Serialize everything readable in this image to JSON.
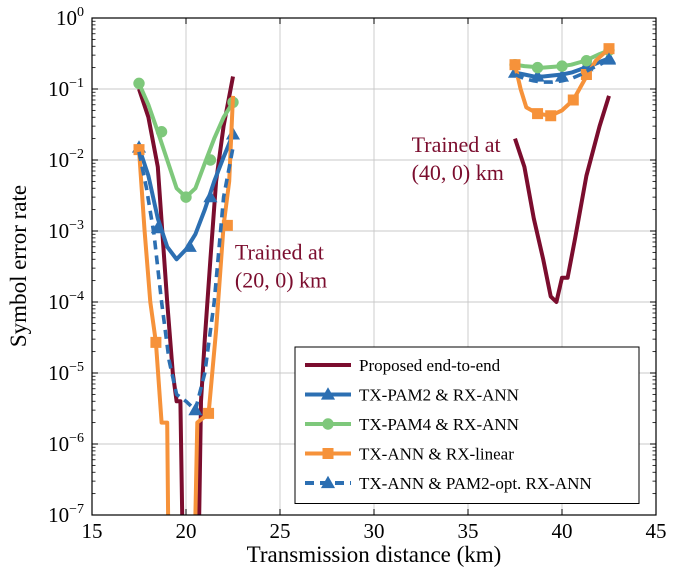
{
  "chart_data": {
    "type": "line",
    "xlabel": "Transmission distance (km)",
    "ylabel": "Symbol error rate",
    "xlim": [
      15,
      45
    ],
    "ylim": [
      1e-07,
      1
    ],
    "yscale": "log",
    "grid": true,
    "legend_position": "bottom-right",
    "x_ticks": [
      15,
      20,
      25,
      30,
      35,
      40,
      45
    ],
    "x_tick_labels": [
      "15",
      "20",
      "25",
      "30",
      "35",
      "40",
      "45"
    ],
    "y_ticks": [
      1e-07,
      1e-06,
      1e-05,
      0.0001,
      0.001,
      0.01,
      0.1,
      1
    ],
    "y_tick_labels": [
      {
        "base": "10",
        "exp": "−7"
      },
      {
        "base": "10",
        "exp": "−6"
      },
      {
        "base": "10",
        "exp": "−5"
      },
      {
        "base": "10",
        "exp": "−4"
      },
      {
        "base": "10",
        "exp": "−3"
      },
      {
        "base": "10",
        "exp": "−2"
      },
      {
        "base": "10",
        "exp": "−1"
      },
      {
        "base": "10",
        "exp": "0"
      }
    ],
    "annotations": [
      {
        "lines": [
          "Trained at",
          "(20, 0) km"
        ],
        "x": 22.6,
        "y": 0.0004,
        "color": "#7b0d2e"
      },
      {
        "lines": [
          "Trained at",
          "(40, 0) km"
        ],
        "x": 32.0,
        "y": 0.013,
        "color": "#7b0d2e"
      }
    ],
    "series": [
      {
        "name": "Proposed end-to-end",
        "color": "#7b0d2e",
        "dashed": false,
        "marker": "none",
        "segments": [
          [
            [
              17.5,
              0.1
            ],
            [
              18.0,
              0.04
            ],
            [
              18.5,
              0.008
            ],
            [
              19.0,
              0.0001
            ],
            [
              19.3,
              1e-05
            ],
            [
              19.5,
              4e-06
            ],
            [
              19.7,
              4e-06
            ],
            [
              19.8,
              1e-07
            ]
          ],
          [
            [
              20.7,
              1e-07
            ],
            [
              20.8,
              4e-06
            ],
            [
              21.0,
              3e-05
            ],
            [
              21.3,
              0.0004
            ],
            [
              21.6,
              0.005
            ],
            [
              22.0,
              0.03
            ],
            [
              22.5,
              0.15
            ]
          ],
          [
            [
              37.5,
              0.02
            ],
            [
              38.0,
              0.008
            ],
            [
              38.5,
              0.0015
            ],
            [
              39.0,
              0.0004
            ],
            [
              39.4,
              0.00012
            ],
            [
              39.7,
              0.0001
            ],
            [
              40.0,
              0.00022
            ],
            [
              40.3,
              0.00022
            ],
            [
              40.7,
              0.0008
            ],
            [
              41.3,
              0.006
            ],
            [
              42.0,
              0.03
            ],
            [
              42.5,
              0.08
            ]
          ]
        ]
      },
      {
        "name": "TX-PAM2 & RX-ANN",
        "color": "#2c6fb2",
        "dashed": false,
        "marker": "triangle",
        "segments": [
          [
            [
              17.5,
              0.015
            ],
            [
              18.0,
              0.006
            ],
            [
              18.5,
              0.0015
            ],
            [
              19.0,
              0.0006
            ],
            [
              19.5,
              0.0004
            ],
            [
              20.0,
              0.00055
            ],
            [
              20.5,
              0.0009
            ],
            [
              21.0,
              0.002
            ],
            [
              21.5,
              0.005
            ],
            [
              22.0,
              0.011
            ],
            [
              22.5,
              0.023
            ]
          ],
          [
            [
              37.5,
              0.17
            ],
            [
              38.0,
              0.16
            ],
            [
              38.5,
              0.15
            ],
            [
              39.0,
              0.15
            ],
            [
              39.5,
              0.155
            ],
            [
              40.0,
              0.16
            ],
            [
              40.5,
              0.17
            ],
            [
              41.0,
              0.19
            ],
            [
              41.5,
              0.21
            ],
            [
              42.0,
              0.24
            ],
            [
              42.5,
              0.27
            ]
          ]
        ],
        "markers_at": [
          [
            17.5,
            0.015
          ],
          [
            18.5,
            0.0011
          ],
          [
            20.2,
            0.0006
          ],
          [
            21.3,
            0.003
          ],
          [
            22.5,
            0.023
          ],
          [
            37.5,
            0.17
          ],
          [
            38.7,
            0.15
          ],
          [
            40.0,
            0.15
          ],
          [
            41.3,
            0.21
          ],
          [
            42.5,
            0.27
          ]
        ]
      },
      {
        "name": "TX-PAM4 & RX-ANN",
        "color": "#7ec87b",
        "dashed": false,
        "marker": "circle",
        "segments": [
          [
            [
              17.5,
              0.12
            ],
            [
              18.0,
              0.06
            ],
            [
              18.5,
              0.025
            ],
            [
              19.0,
              0.01
            ],
            [
              19.5,
              0.004
            ],
            [
              20.0,
              0.003
            ],
            [
              20.5,
              0.004
            ],
            [
              21.0,
              0.009
            ],
            [
              21.5,
              0.02
            ],
            [
              22.0,
              0.04
            ],
            [
              22.5,
              0.065
            ]
          ],
          [
            [
              37.5,
              0.22
            ],
            [
              38.0,
              0.21
            ],
            [
              38.5,
              0.205
            ],
            [
              39.0,
              0.2
            ],
            [
              39.5,
              0.205
            ],
            [
              40.0,
              0.21
            ],
            [
              40.5,
              0.22
            ],
            [
              41.0,
              0.24
            ],
            [
              41.5,
              0.27
            ],
            [
              42.0,
              0.31
            ],
            [
              42.5,
              0.35
            ]
          ]
        ],
        "markers_at": [
          [
            17.5,
            0.12
          ],
          [
            18.7,
            0.025
          ],
          [
            20.0,
            0.003
          ],
          [
            21.3,
            0.01
          ],
          [
            22.5,
            0.065
          ],
          [
            37.5,
            0.22
          ],
          [
            38.7,
            0.2
          ],
          [
            40.0,
            0.21
          ],
          [
            41.3,
            0.25
          ],
          [
            42.5,
            0.35
          ]
        ]
      },
      {
        "name": "TX-ANN & RX-linear",
        "color": "#f6923a",
        "dashed": false,
        "marker": "square",
        "segments": [
          [
            [
              17.5,
              0.014
            ],
            [
              17.8,
              0.001
            ],
            [
              18.1,
              0.0001
            ],
            [
              18.4,
              2.7e-05
            ],
            [
              18.7,
              2e-06
            ],
            [
              19.0,
              2e-06
            ],
            [
              19.05,
              1e-07
            ]
          ],
          [
            [
              20.5,
              1e-07
            ],
            [
              20.6,
              2e-06
            ],
            [
              21.2,
              2.7e-06
            ],
            [
              21.6,
              4e-05
            ],
            [
              22.0,
              0.0012
            ],
            [
              22.3,
              0.005
            ],
            [
              22.5,
              0.08
            ]
          ],
          [
            [
              37.5,
              0.22
            ],
            [
              37.8,
              0.1
            ],
            [
              38.1,
              0.055
            ],
            [
              38.7,
              0.045
            ],
            [
              39.4,
              0.042
            ],
            [
              40.0,
              0.05
            ],
            [
              40.6,
              0.07
            ],
            [
              41.3,
              0.15
            ],
            [
              41.8,
              0.25
            ],
            [
              42.5,
              0.37
            ]
          ]
        ],
        "markers_at": [
          [
            17.5,
            0.014
          ],
          [
            18.4,
            2.7e-05
          ],
          [
            21.2,
            2.7e-06
          ],
          [
            22.2,
            0.0012
          ],
          [
            37.5,
            0.22
          ],
          [
            38.7,
            0.045
          ],
          [
            39.4,
            0.042
          ],
          [
            40.6,
            0.07
          ],
          [
            41.3,
            0.16
          ],
          [
            42.5,
            0.37
          ]
        ]
      },
      {
        "name": "TX-ANN & PAM2-opt. RX-ANN",
        "color": "#2c6fb2",
        "dashed": true,
        "marker": "triangle",
        "segments": [
          [
            [
              17.5,
              0.013
            ],
            [
              17.9,
              0.004
            ],
            [
              18.3,
              0.0009
            ],
            [
              18.7,
              0.0001
            ],
            [
              19.1,
              1.5e-05
            ],
            [
              19.5,
              5e-06
            ],
            [
              20.0,
              4e-06
            ],
            [
              20.5,
              3e-06
            ],
            [
              21.0,
              1e-05
            ],
            [
              21.5,
              0.0001
            ],
            [
              22.0,
              0.003
            ],
            [
              22.5,
              0.015
            ]
          ],
          [
            [
              37.5,
              0.16
            ],
            [
              38.0,
              0.14
            ],
            [
              38.5,
              0.13
            ],
            [
              39.0,
              0.125
            ],
            [
              39.5,
              0.125
            ],
            [
              40.0,
              0.13
            ],
            [
              40.5,
              0.14
            ],
            [
              41.0,
              0.16
            ],
            [
              41.5,
              0.19
            ],
            [
              42.0,
              0.22
            ],
            [
              42.5,
              0.26
            ]
          ]
        ],
        "markers_at": [
          [
            20.5,
            3e-06
          ],
          [
            42.5,
            0.26
          ]
        ]
      }
    ]
  }
}
